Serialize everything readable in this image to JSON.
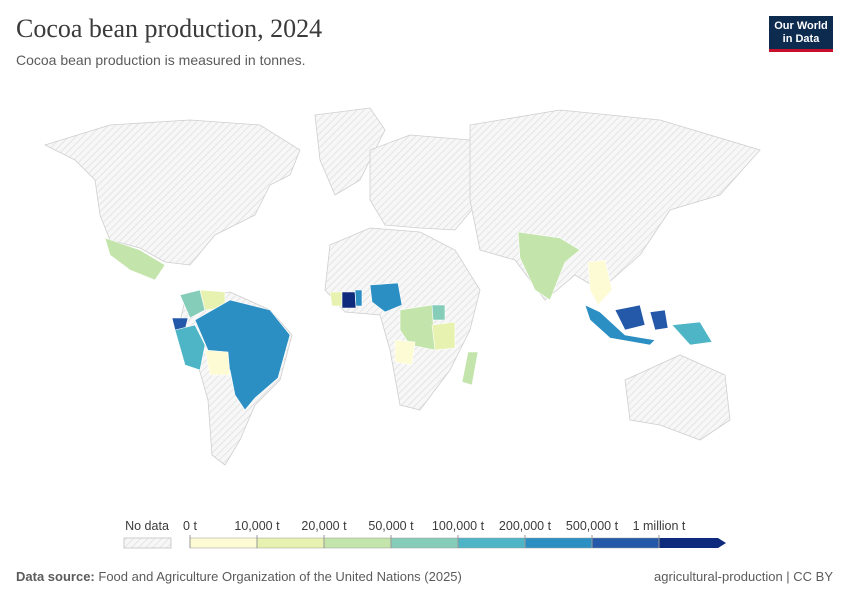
{
  "header": {
    "title": "Cocoa bean production, 2024",
    "subtitle": "Cocoa bean production is measured in tonnes.",
    "logo": [
      "Our World",
      "in Data"
    ]
  },
  "legend": {
    "no_data": "No data",
    "bins": [
      {
        "value": 0,
        "label": "0 t"
      },
      {
        "value": 10000,
        "label": "10,000 t"
      },
      {
        "value": 20000,
        "label": "20,000 t"
      },
      {
        "value": 50000,
        "label": "50,000 t"
      },
      {
        "value": 100000,
        "label": "100,000 t"
      },
      {
        "value": 200000,
        "label": "200,000 t"
      },
      {
        "value": 500000,
        "label": "500,000 t"
      },
      {
        "value": 1000000,
        "label": "1 million t"
      }
    ],
    "colors": [
      "#fdfbd3",
      "#e8f2b0",
      "#c3e4aa",
      "#86cdb9",
      "#4db5c6",
      "#2b8fc4",
      "#2458a8",
      "#0d2a7c"
    ]
  },
  "footer": {
    "source_label": "Data source:",
    "source": "Food and Agriculture Organization of the United Nations (2025)",
    "credit": "agricultural-production | CC BY"
  }
}
